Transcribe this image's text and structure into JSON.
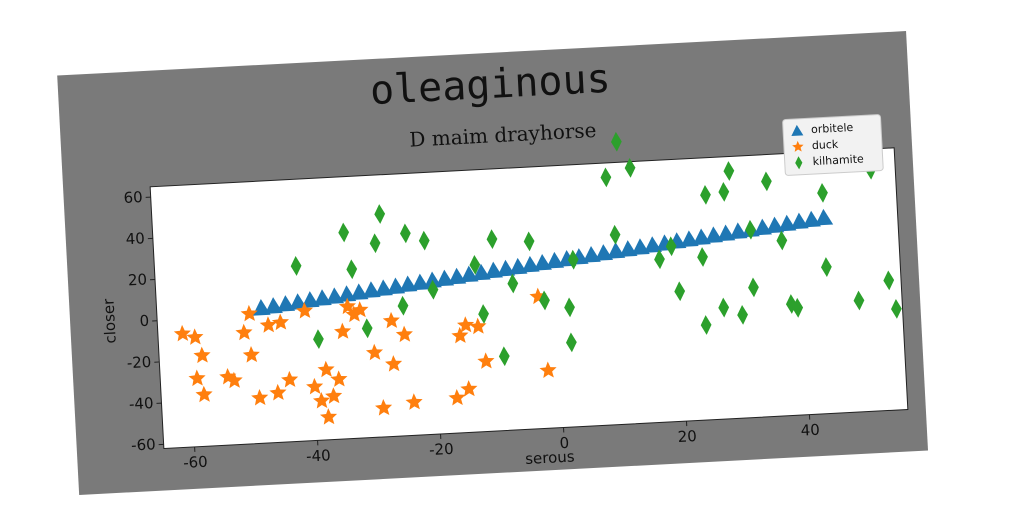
{
  "chart_data": {
    "type": "scatter",
    "title": "oleaginous",
    "subtitle": "D maim drayhorse",
    "x_label": "serous",
    "y_label": "closer",
    "xlim": [
      -65,
      56
    ],
    "ylim": [
      -62,
      65
    ],
    "xticks": [
      -60,
      -40,
      -20,
      0,
      20,
      40
    ],
    "yticks": [
      -60,
      -40,
      -20,
      0,
      20,
      40,
      60
    ],
    "legend": "upper right",
    "series": [
      {
        "name": "orbitele",
        "color": "#1f77b4",
        "marker": "triangle",
        "x": [
          -48,
          -46,
          -44,
          -42,
          -40,
          -38,
          -36,
          -34,
          -32,
          -30,
          -28,
          -26,
          -24,
          -22,
          -20,
          -18,
          -16,
          -14,
          -12,
          -10,
          -8,
          -6,
          -4,
          -2,
          0,
          2,
          4,
          6,
          8,
          10,
          12,
          14,
          16,
          18,
          20,
          22,
          24,
          26,
          28,
          30,
          32,
          34,
          36,
          38,
          40,
          42,
          44
        ],
        "values": [
          3.5,
          4.1,
          4.8,
          5.4,
          6.1,
          6.7,
          7.3,
          8.0,
          8.6,
          9.3,
          9.9,
          10.5,
          11.2,
          11.8,
          12.5,
          13.1,
          13.7,
          14.4,
          15.0,
          15.7,
          16.3,
          16.9,
          17.6,
          18.2,
          18.9,
          19.5,
          20.1,
          20.8,
          21.4,
          22.1,
          22.7,
          23.3,
          24.0,
          24.6,
          25.3,
          25.9,
          26.5,
          27.2,
          27.8,
          28.5,
          29.1,
          29.7,
          30.4,
          31.0,
          31.7,
          32.3,
          32.9
        ]
      },
      {
        "name": "duck",
        "color": "#ff7f0e",
        "marker": "star",
        "x": [
          -61,
          -59,
          -58,
          -59,
          -58,
          -54,
          -53,
          -51,
          -50,
          -50,
          -49,
          -47,
          -46,
          -45,
          -44,
          -41,
          -40,
          -39,
          -38,
          -37,
          -38,
          -36,
          -35,
          -34,
          -33,
          -32,
          -30,
          -29,
          -27,
          -27,
          -25,
          -24,
          -17,
          -16,
          -15,
          -15,
          -13,
          -12,
          -3,
          -2
        ],
        "values": [
          -7,
          -9,
          -18,
          -29,
          -37,
          -29,
          -31,
          -8,
          1,
          -19,
          -40,
          -5,
          -38,
          -4,
          -32,
          1,
          -36,
          -43,
          -28,
          -41,
          -51,
          -33,
          -10,
          2,
          -2,
          0,
          -21,
          -48,
          -27,
          -6,
          -13,
          -46,
          -45,
          -15,
          -41,
          -10,
          -11,
          -28,
          2,
          -34
        ]
      },
      {
        "name": "kilhamite",
        "color": "#2ca02c",
        "marker": "diamond",
        "x": [
          -42,
          -39,
          -34,
          -33,
          -31,
          -29,
          -28,
          -25,
          -24,
          -21,
          -20,
          -13,
          -12,
          -10,
          -9,
          -7,
          -4,
          -2,
          2,
          2,
          3,
          9,
          10,
          11,
          13,
          17,
          19,
          20,
          24,
          24,
          25,
          27,
          28,
          29,
          30,
          32,
          32,
          35,
          37,
          38,
          39,
          44,
          44,
          49,
          52,
          54,
          55
        ],
        "values": [
          23,
          -13,
          38,
          20,
          -9,
          32,
          46,
          1,
          36,
          32,
          8,
          19,
          -5,
          31,
          -26,
          9,
          29,
          0,
          -4,
          -21,
          19,
          58,
          30,
          75,
          62,
          17,
          23,
          1,
          -16,
          17,
          47,
          -8,
          48,
          58,
          -12,
          1,
          29,
          52,
          23,
          -8,
          -10,
          9,
          45,
          -8,
          55,
          1,
          -13
        ]
      }
    ]
  }
}
